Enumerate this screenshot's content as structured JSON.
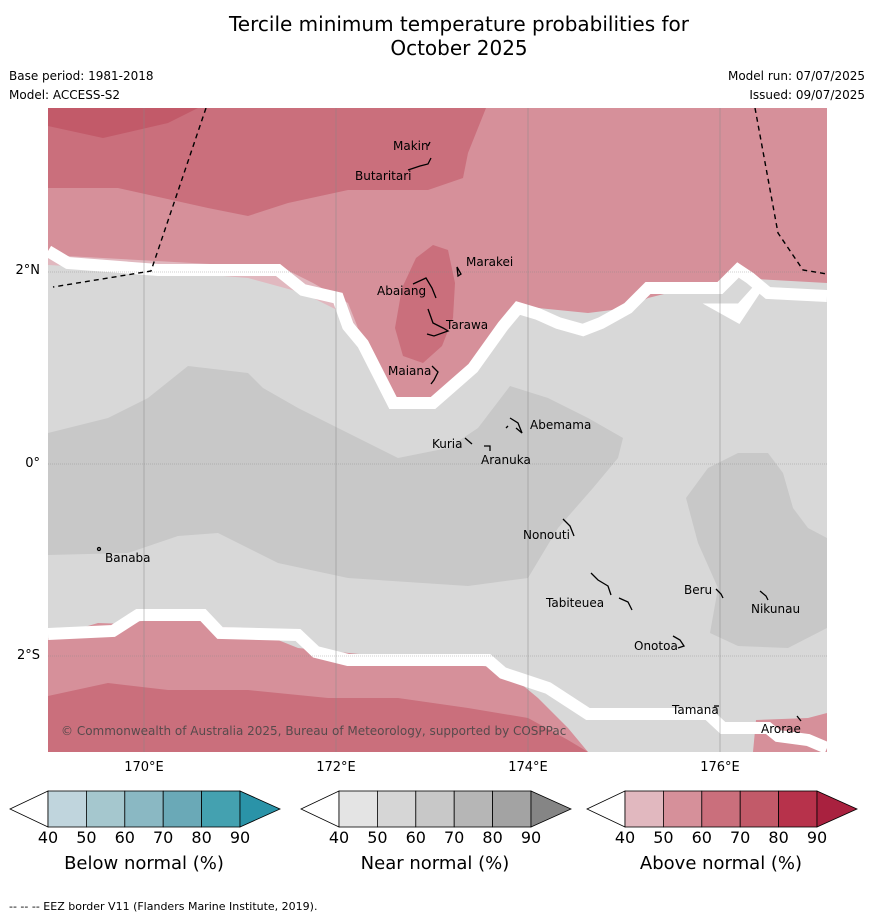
{
  "title_line1": "Tercile minimum temperature probabilities for",
  "title_line2": "October 2025",
  "base_period": "Base period: 1981-2018",
  "model": "Model: ACCESS-S2",
  "model_run": "Model run: 07/07/2025",
  "issued": "Issued: 09/07/2025",
  "lat_labels": [
    "2°N",
    "0°",
    "2°S"
  ],
  "lon_labels": [
    "170°E",
    "172°E",
    "174°E",
    "176°E"
  ],
  "places": [
    "Makin",
    "Butaritari",
    "Marakei",
    "Abaiang",
    "Tarawa",
    "Maiana",
    "Abemama",
    "Kuria",
    "Aranuka",
    "Nonouti",
    "Banaba",
    "Beru",
    "Nikunau",
    "Tabiteuea",
    "Onotoa",
    "Tamana",
    "Arorae"
  ],
  "copyright": "© Commonwealth of Australia 2025, Bureau of Meteorology, supported by COSPPac",
  "colorbars": [
    {
      "title": "Below normal (%)",
      "ticks": [
        "40",
        "50",
        "60",
        "70",
        "80",
        "90"
      ],
      "colors": [
        "#c0d5dd",
        "#a5c7ce",
        "#8ab8c3",
        "#6aa9b7",
        "#44a1b0",
        "#2a93a8"
      ]
    },
    {
      "title": "Near normal (%)",
      "ticks": [
        "40",
        "50",
        "60",
        "70",
        "80",
        "90"
      ],
      "colors": [
        "#e4e4e4",
        "#d6d6d6",
        "#c8c8c8",
        "#b6b6b6",
        "#a3a3a3",
        "#858585"
      ]
    },
    {
      "title": "Above normal (%)",
      "ticks": [
        "40",
        "50",
        "60",
        "70",
        "80",
        "90"
      ],
      "colors": [
        "#e1b8bf",
        "#d6909a",
        "#ca6f7c",
        "#c25a69",
        "#b7324b",
        "#a9213f"
      ]
    }
  ],
  "footer": "-- -- -- EEZ border V11 (Flanders Marine Institute, 2019).",
  "map_colors": {
    "above_50": "#d6909a",
    "above_60": "#ca6f7c",
    "above_70": "#c25a69",
    "above_40": "#e1b8bf",
    "near_40": "#d8d8d8",
    "near_50": "#c8c8c8",
    "gap": "#ffffff",
    "grid": "#888888"
  }
}
